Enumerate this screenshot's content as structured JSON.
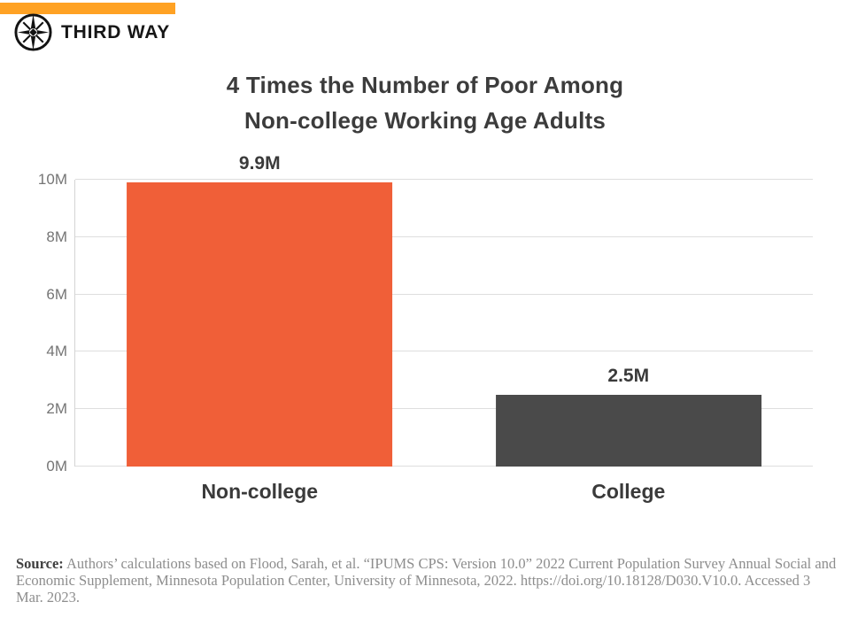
{
  "brand": {
    "name": "THIRD WAY",
    "accent_color": "#FFA224",
    "logo": "compass-star-icon"
  },
  "chart_data": {
    "type": "bar",
    "title": "4 Times the Number of Poor Among Non-college Working Age Adults",
    "title_lines": [
      "4 Times the Number of Poor Among",
      "Non-college Working Age Adults"
    ],
    "categories": [
      "Non-college",
      "College"
    ],
    "values": [
      9.9,
      2.5
    ],
    "value_labels": [
      "9.9M",
      "2.5M"
    ],
    "bar_colors": [
      "#F05F38",
      "#4A4A4A"
    ],
    "xlabel": "",
    "ylabel": "",
    "ylim": [
      0,
      10
    ],
    "yticks": [
      {
        "value": 0,
        "label": "0M"
      },
      {
        "value": 2,
        "label": "2M"
      },
      {
        "value": 4,
        "label": "4M"
      },
      {
        "value": 6,
        "label": "6M"
      },
      {
        "value": 8,
        "label": "8M"
      },
      {
        "value": 10,
        "label": "10M"
      }
    ],
    "grid": true,
    "legend": false
  },
  "colors": {
    "accent": "#FFA224",
    "grid": "#DEDEDE",
    "axis": "#D4D4D4",
    "text_dark": "#3C3C3C",
    "tick_gray": "#757575",
    "source_gray": "#8D8D8D"
  },
  "source": {
    "label": "Source:",
    "text": " Authors’ calculations based on Flood, Sarah, et al. “IPUMS CPS: Version 10.0” 2022 Current Population Survey Annual Social and Economic Supplement, Minnesota Population Center, University of Minnesota, 2022. https://doi.org/10.18128/D030.V10.0. Accessed 3 Mar. 2023."
  }
}
